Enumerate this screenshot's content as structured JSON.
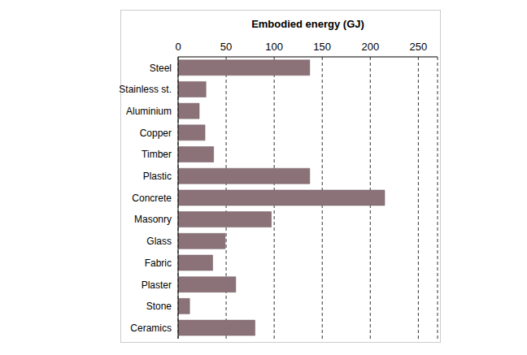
{
  "chart_data": {
    "type": "bar",
    "orientation": "horizontal",
    "x_label": "Embodied energy (GJ)",
    "categories": [
      "Steel",
      "Stainless st.",
      "Aluminium",
      "Copper",
      "Timber",
      "Plastic",
      "Concrete",
      "Masonry",
      "Glass",
      "Fabric",
      "Plaster",
      "Stone",
      "Ceramics"
    ],
    "values": [
      137,
      29,
      22,
      28,
      37,
      137,
      215,
      97,
      49,
      36,
      60,
      12,
      80
    ],
    "color": "#8b7278",
    "xlim": [
      0,
      270
    ],
    "xticks": [
      0,
      50,
      100,
      150,
      200,
      250
    ],
    "grid": true
  }
}
